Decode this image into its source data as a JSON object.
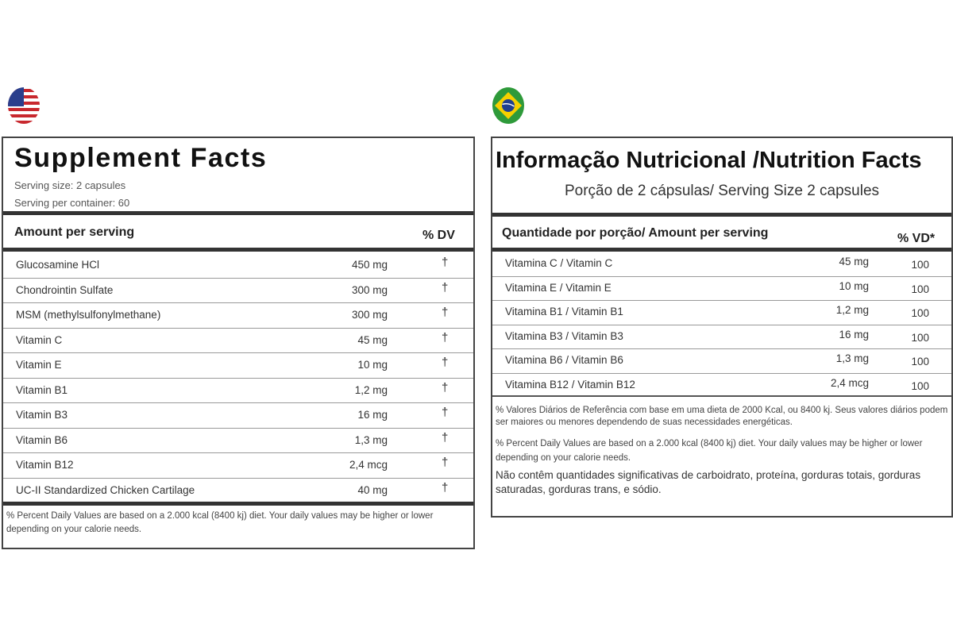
{
  "us_label": {
    "title": "Supplement Facts",
    "serving_size": "Serving size: 2 capsules",
    "servings_per_container": "Serving per container: 60",
    "col_amount": "Amount per serving",
    "col_dv": "% DV",
    "rows": [
      {
        "name": "Glucosamine HCl",
        "amount": "450 mg",
        "dv": "†"
      },
      {
        "name": "Chondrointin Sulfate",
        "amount": "300 mg",
        "dv": "†"
      },
      {
        "name": "MSM (methylsulfonylmethane)",
        "amount": "300 mg",
        "dv": "†"
      },
      {
        "name": "Vitamin C",
        "amount": "45 mg",
        "dv": "†"
      },
      {
        "name": "Vitamin E",
        "amount": "10 mg",
        "dv": "†"
      },
      {
        "name": "Vitamin B1",
        "amount": "1,2 mg",
        "dv": "†"
      },
      {
        "name": "Vitamin B3",
        "amount": "16 mg",
        "dv": "†"
      },
      {
        "name": "Vitamin B6",
        "amount": "1,3 mg",
        "dv": "†"
      },
      {
        "name": "Vitamin B12",
        "amount": "2,4 mcg",
        "dv": "†"
      },
      {
        "name": "UC-II Standardized Chicken Cartilage",
        "amount": "40 mg",
        "dv": "†"
      }
    ],
    "footnote": "% Percent Daily Values are based on a 2.000 kcal (8400 kj) diet. Your daily values may be higher or lower depending on your calorie needs."
  },
  "br_label": {
    "title": "Informação Nutricional /Nutrition Facts",
    "serving": "Porção de 2 cápsulas/ Serving Size 2 capsules",
    "col_amount": "Quantidade por porção/ Amount per serving",
    "col_vd": "% VD*",
    "rows": [
      {
        "name": "Vitamina C / Vitamin C",
        "amount": "45 mg",
        "vd": "100"
      },
      {
        "name": "Vitamina E / Vitamin E",
        "amount": "10 mg",
        "vd": "100"
      },
      {
        "name": "Vitamina B1 / Vitamin B1",
        "amount": "1,2 mg",
        "vd": "100"
      },
      {
        "name": "Vitamina B3 / Vitamin B3",
        "amount": "16 mg",
        "vd": "100"
      },
      {
        "name": "Vitamina B6 / Vitamin B6",
        "amount": "1,3 mg",
        "vd": "100"
      },
      {
        "name": "Vitamina B12 / Vitamin B12",
        "amount": "2,4 mcg",
        "vd": "100"
      }
    ],
    "footnote_pt": "% Valores Diários de Referência com base em uma dieta de 2000 Kcal, ou 8400 kj. Seus valores diários podem ser maiores ou menores dependendo de suas necessidades energéticas.",
    "footnote_en": "% Percent Daily Values are based on a 2.000 kcal (8400 kj) diet. Your daily values may be higher or lower depending on your calorie needs.",
    "notice": "Não contêm quantidades significativas de carboidrato, proteína, gorduras totais, gorduras saturadas, gorduras trans, e sódio."
  },
  "icons": {
    "left_flag": "usa-flag-icon",
    "right_flag": "brazil-flag-icon"
  },
  "colors": {
    "border": "#444444",
    "text": "#222222",
    "brazil_green": "#2e9a3a",
    "brazil_yellow": "#f5d000",
    "brazil_blue": "#1f3f8f",
    "usa_red": "#c8282e",
    "usa_blue": "#2b3f8c"
  }
}
